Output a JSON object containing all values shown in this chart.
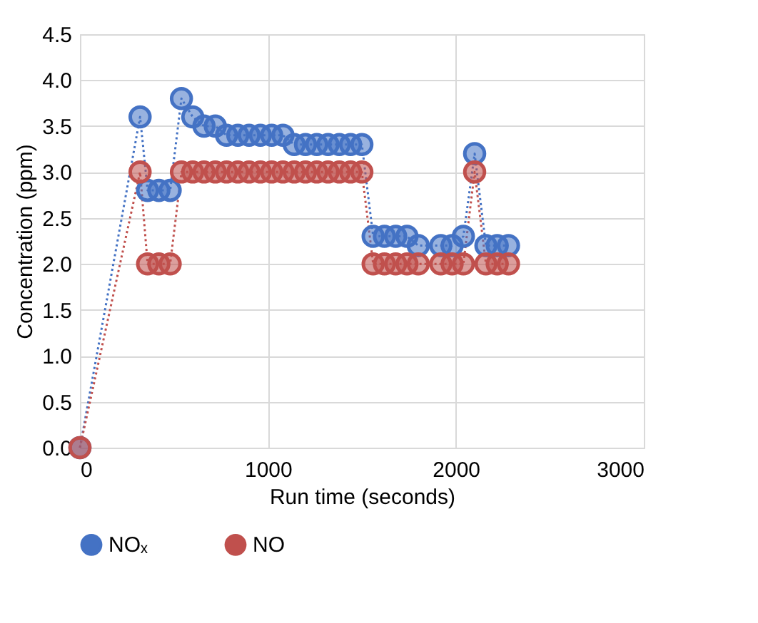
{
  "chart_data": {
    "type": "line",
    "xlabel": "Run time (seconds)",
    "ylabel": "Concentration (ppm)",
    "x": [
      0,
      320,
      360,
      420,
      480,
      540,
      600,
      660,
      720,
      780,
      840,
      900,
      960,
      1020,
      1080,
      1140,
      1200,
      1260,
      1320,
      1380,
      1440,
      1500,
      1560,
      1620,
      1680,
      1740,
      1800,
      1920,
      1980,
      2040,
      2100,
      2160,
      2220,
      2280
    ],
    "series": [
      {
        "name": "NOₓ",
        "color": "#4472c4",
        "values": [
          0,
          3.6,
          2.8,
          2.8,
          2.8,
          3.8,
          3.6,
          3.5,
          3.5,
          3.4,
          3.4,
          3.4,
          3.4,
          3.4,
          3.4,
          3.3,
          3.3,
          3.3,
          3.3,
          3.3,
          3.3,
          3.3,
          2.3,
          2.3,
          2.3,
          2.3,
          2.2,
          2.2,
          2.2,
          2.3,
          3.2,
          2.2,
          2.2,
          2.2
        ]
      },
      {
        "name": "NO",
        "color": "#c0504d",
        "values": [
          0,
          3.0,
          2.0,
          2.0,
          2.0,
          3.0,
          3.0,
          3.0,
          3.0,
          3.0,
          3.0,
          3.0,
          3.0,
          3.0,
          3.0,
          3.0,
          3.0,
          3.0,
          3.0,
          3.0,
          3.0,
          3.0,
          2.0,
          2.0,
          2.0,
          2.0,
          2.0,
          2.0,
          2.0,
          2.0,
          3.0,
          2.0,
          2.0,
          2.0
        ]
      }
    ],
    "xlim": [
      0,
      3000
    ],
    "xticks": [
      0,
      1000,
      2000,
      3000
    ],
    "ylim": [
      0,
      4.5
    ],
    "yticks": [
      {
        "value": 0,
        "label": "0.0"
      },
      0.5,
      {
        "value": 1,
        "label": "1.0"
      },
      1.5,
      {
        "value": 2,
        "label": "2.0"
      },
      2.5,
      {
        "value": 3,
        "label": "3.0"
      },
      3.5,
      {
        "value": 4,
        "label": "4.0"
      },
      4.5
    ],
    "grid": true,
    "legend": "bottom",
    "marker": "circle",
    "line_style": "dotted"
  }
}
